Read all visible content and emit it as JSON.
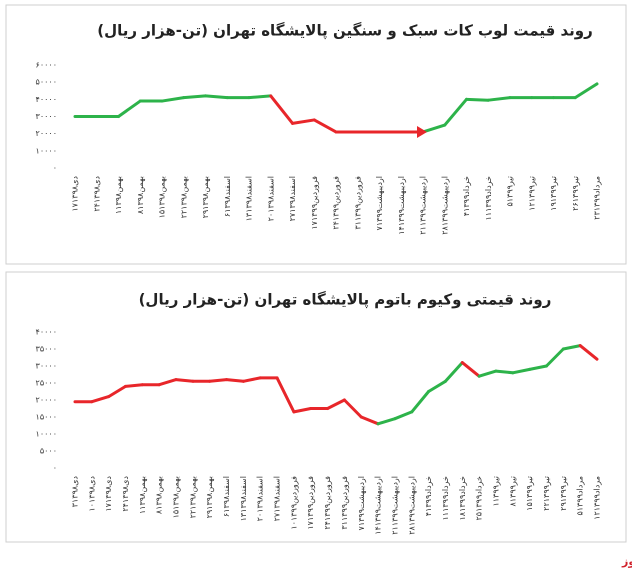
{
  "chart_data": [
    {
      "type": "line",
      "title": "روند قیمت لوب کات سبک و سنگین پالایشگاه تهران (تن-هزار ریال)",
      "categories": [
        "۱۷دی۱۳۹۸",
        "۲۴دی۱۳۹۸",
        "۱بهمن۱۳۹۸",
        "۸بهمن۱۳۹۸",
        "۱۵بهمن۱۳۹۸",
        "۲۲بهمن۱۳۹۸",
        "۲۹بهمن۱۳۹۸",
        "۶اسفند۱۳۹۸",
        "۱۳اسفند۱۳۹۸",
        "۲۰اسفند۱۳۹۸",
        "۲۷اسفند۱۳۹۸",
        "۱۷فروردین۱۳۹۹",
        "۲۴فروردین۱۳۹۹",
        "۳۱فروردین۱۳۹۹",
        "۷اردیبهشت۱۳۹۹",
        "۱۴اردیبهشت۱۳۹۹",
        "۲۱اردیبهشت۱۳۹۹",
        "۲۸اردیبهشت۱۳۹۹",
        "۴خرداد۱۳۹۹",
        "۱۱خرداد۱۳۹۹",
        "۵تیر۱۳۹۹",
        "۱۲تیر۱۳۹۹",
        "۱۹تیر۱۳۹۹",
        "۲۶تیر۱۳۹۹",
        "۲۳مرداد۱۳۹۹"
      ],
      "values": [
        30000,
        30000,
        30000,
        39000,
        39000,
        41000,
        42000,
        41000,
        41000,
        42000,
        26000,
        28000,
        21000,
        21000,
        21000,
        21000,
        21000,
        25000,
        40000,
        39500,
        41000,
        41000,
        41000,
        41000,
        49000
      ],
      "segment_colors": [
        "#2db34a",
        "#2db34a",
        "#2db34a",
        "#2db34a",
        "#2db34a",
        "#2db34a",
        "#2db34a",
        "#2db34a",
        "#2db34a",
        "#e8262a",
        "#e8262a",
        "#e8262a",
        "#e8262a",
        "#e8262a",
        "#e8262a",
        "#e8262a",
        "#2db34a",
        "#2db34a",
        "#2db34a",
        "#2db34a",
        "#2db34a",
        "#2db34a",
        "#2db34a",
        "#2db34a"
      ],
      "ylim": [
        0,
        60000
      ],
      "yticks": [
        {
          "value": 0,
          "label": "۰"
        },
        {
          "value": 10000,
          "label": "۱۰۰۰۰"
        },
        {
          "value": 20000,
          "label": "۲۰۰۰۰"
        },
        {
          "value": 30000,
          "label": "۳۰۰۰۰"
        },
        {
          "value": 40000,
          "label": "۴۰۰۰۰"
        },
        {
          "value": 50000,
          "label": "۵۰۰۰۰"
        },
        {
          "value": 60000,
          "label": "۶۰۰۰۰"
        }
      ],
      "grid": false
    },
    {
      "type": "line",
      "title": "روند قیمتی وکیوم باتوم پالایشگاه تهران (تن-هزار ریال)",
      "categories": [
        "۳دی۱۳۹۸",
        "۱۰دی۱۳۹۸",
        "۱۷دی۱۳۹۸",
        "۲۴دی۱۳۹۸",
        "۱بهمن۱۳۹۸",
        "۸بهمن۱۳۹۸",
        "۱۵بهمن۱۳۹۸",
        "۲۲بهمن۱۳۹۸",
        "۲۹بهمن۱۳۹۸",
        "۶اسفند۱۳۹۸",
        "۱۳اسفند۱۳۹۸",
        "۲۰اسفند۱۳۹۸",
        "۲۷اسفند۱۳۹۸",
        "۱۰فروردین۱۳۹۹",
        "۱۷فروردین۱۳۹۹",
        "۲۴فروردین۱۳۹۹",
        "۳۱فروردین۱۳۹۹",
        "۷اردیبهشت۱۳۹۹",
        "۱۴اردیبهشت۱۳۹۹",
        "۲۱اردیبهشت۱۳۹۹",
        "۲۸اردیبهشت۱۳۹۹",
        "۴خرداد۱۳۹۹",
        "۱۱خرداد۱۳۹۹",
        "۱۸خرداد۱۳۹۹",
        "۲۵خرداد۱۳۹۹",
        "۱تیر۱۳۹۹",
        "۸تیر۱۳۹۹",
        "۱۵تیر۱۳۹۹",
        "۲۲تیر۱۳۹۹",
        "۲۹تیر۱۳۹۹",
        "۵مرداد۱۳۹۹",
        "۱۲مرداد۱۳۹۹"
      ],
      "values": [
        19500,
        19500,
        21000,
        24000,
        24500,
        24500,
        26000,
        25500,
        25500,
        26000,
        25500,
        26500,
        26500,
        16500,
        17500,
        17500,
        20000,
        15000,
        13000,
        14500,
        16500,
        22500,
        25500,
        31000,
        27000,
        28500,
        28000,
        29000,
        30000,
        35000,
        36000,
        32000
      ],
      "segment_colors": [
        "#e8262a",
        "#e8262a",
        "#e8262a",
        "#e8262a",
        "#e8262a",
        "#e8262a",
        "#e8262a",
        "#e8262a",
        "#e8262a",
        "#e8262a",
        "#e8262a",
        "#e8262a",
        "#e8262a",
        "#e8262a",
        "#e8262a",
        "#e8262a",
        "#e8262a",
        "#e8262a",
        "#2db34a",
        "#2db34a",
        "#2db34a",
        "#2db34a",
        "#2db34a",
        "#e8262a",
        "#2db34a",
        "#2db34a",
        "#2db34a",
        "#2db34a",
        "#2db34a",
        "#2db34a",
        "#e8262a"
      ],
      "ylim": [
        0,
        40000
      ],
      "yticks": [
        {
          "value": 0,
          "label": "۰"
        },
        {
          "value": 5000,
          "label": "۵۰۰۰"
        },
        {
          "value": 10000,
          "label": "۱۰۰۰۰"
        },
        {
          "value": 15000,
          "label": "۱۵۰۰۰"
        },
        {
          "value": 20000,
          "label": "۲۰۰۰۰"
        },
        {
          "value": 25000,
          "label": "۲۵۰۰۰"
        },
        {
          "value": 30000,
          "label": "۳۰۰۰۰"
        },
        {
          "value": 35000,
          "label": "۳۵۰۰۰"
        },
        {
          "value": 40000,
          "label": "۴۰۰۰۰"
        }
      ],
      "grid": false
    }
  ],
  "source": "بورس نیوز"
}
